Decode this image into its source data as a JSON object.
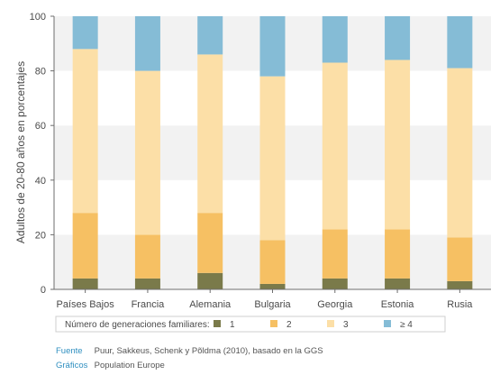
{
  "chart_data": {
    "type": "bar",
    "stacked": true,
    "ylabel": "Adultos de 20-80 años en porcentajes",
    "ylim": [
      0,
      100
    ],
    "yticks": [
      0,
      20,
      40,
      60,
      80,
      100
    ],
    "grid": false,
    "categories": [
      "Países Bajos",
      "Francia",
      "Alemania",
      "Bulgaria",
      "Georgia",
      "Estonia",
      "Rusia"
    ],
    "series": [
      {
        "name": "1",
        "color": "#7a7a4a",
        "values": [
          4,
          4,
          6,
          2,
          4,
          4,
          3
        ]
      },
      {
        "name": "2",
        "color": "#f6c063",
        "values": [
          24,
          16,
          22,
          16,
          18,
          18,
          16
        ]
      },
      {
        "name": "3",
        "color": "#fcdfa7",
        "values": [
          60,
          60,
          58,
          60,
          61,
          62,
          62
        ]
      },
      {
        "name": "≥ 4",
        "color": "#85bcd6",
        "values": [
          12,
          20,
          14,
          22,
          17,
          16,
          19
        ]
      }
    ],
    "legend": {
      "title": "Número de generaciones familiares:",
      "placement": "bottom"
    }
  },
  "footer": {
    "source_label": "Fuente",
    "source_text": "Puur, Sakkeus, Schenk y Põldma (2010), basado en la GGS",
    "graphics_label": "Gráficos",
    "graphics_text": "Population Europe"
  }
}
